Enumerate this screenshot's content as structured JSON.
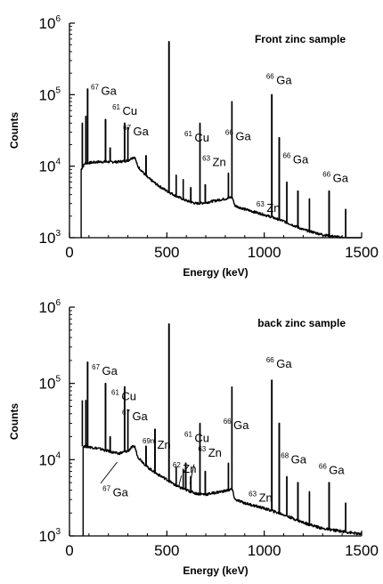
{
  "chart_data": [
    {
      "type": "line",
      "panel_label": "Front zinc sample",
      "xlabel": "Energy (keV)",
      "ylabel": "Counts",
      "xlim": [
        0,
        1500
      ],
      "ylim": [
        1000,
        1000000
      ],
      "log_y": true,
      "x_ticks": [
        "0",
        "500",
        "1000",
        "1500"
      ],
      "y_ticks": [
        {
          "base": "10",
          "exp": "3"
        },
        {
          "base": "10",
          "exp": "4"
        },
        {
          "base": "10",
          "exp": "5"
        },
        {
          "base": "10",
          "exp": "6"
        }
      ],
      "baseline": [
        [
          60,
          9000
        ],
        [
          80,
          11000
        ],
        [
          150,
          11500
        ],
        [
          250,
          11500
        ],
        [
          300,
          12000
        ],
        [
          320,
          13000
        ],
        [
          335,
          13500
        ],
        [
          350,
          10000
        ],
        [
          400,
          7000
        ],
        [
          450,
          5500
        ],
        [
          500,
          4500
        ],
        [
          550,
          3800
        ],
        [
          600,
          3300
        ],
        [
          650,
          3000
        ],
        [
          700,
          3100
        ],
        [
          750,
          3300
        ],
        [
          800,
          3500
        ],
        [
          835,
          3700
        ],
        [
          850,
          2800
        ],
        [
          900,
          2500
        ],
        [
          1000,
          2100
        ],
        [
          1100,
          1700
        ],
        [
          1200,
          1300
        ],
        [
          1300,
          1100
        ],
        [
          1400,
          1000
        ],
        [
          1500,
          880
        ]
      ],
      "peaks": [
        [
          66,
          40000
        ],
        [
          84,
          50000
        ],
        [
          93,
          120000
        ],
        [
          185,
          45000
        ],
        [
          209,
          18000
        ],
        [
          283,
          40000
        ],
        [
          300,
          35000
        ],
        [
          393,
          14000
        ],
        [
          511,
          550000
        ],
        [
          548,
          7500
        ],
        [
          584,
          6500
        ],
        [
          623,
          5000
        ],
        [
          670,
          40000
        ],
        [
          697,
          5500
        ],
        [
          816,
          8000
        ],
        [
          834,
          80000
        ],
        [
          1039,
          100000
        ],
        [
          1077,
          25000
        ],
        [
          1116,
          6000
        ],
        [
          1173,
          4500
        ],
        [
          1232,
          3500
        ],
        [
          1333,
          3500
        ],
        [
          1333,
          4500
        ],
        [
          1418,
          2500
        ]
      ],
      "annotations": [
        {
          "sup": "67",
          "el": "Ga",
          "x": 110,
          "y": 100000
        },
        {
          "sup": "61",
          "el": "Cu",
          "x": 220,
          "y": 52000
        },
        {
          "sup": "67",
          "el": "Ga",
          "x": 275,
          "y": 27000
        },
        {
          "sup": "61",
          "el": "Cu",
          "x": 590,
          "y": 22000
        },
        {
          "sup": "63",
          "el": "Zn",
          "x": 682,
          "y": 10000
        },
        {
          "sup": "66",
          "el": "Ga",
          "x": 800,
          "y": 23000
        },
        {
          "sup": "66",
          "el": "Ga",
          "x": 1010,
          "y": 140000
        },
        {
          "sup": "63",
          "el": "Zn",
          "x": 960,
          "y": 2300
        },
        {
          "sup": "66",
          "el": "Ga",
          "x": 1095,
          "y": 11000
        },
        {
          "sup": "66",
          "el": "Ga",
          "x": 1300,
          "y": 6000
        }
      ]
    },
    {
      "type": "line",
      "panel_label": "back zinc sample",
      "xlabel": "Energy (keV)",
      "ylabel": "Counts",
      "xlim": [
        0,
        1500
      ],
      "ylim": [
        1000,
        1000000
      ],
      "log_y": true,
      "x_ticks": [
        "0",
        "500",
        "1000",
        "1500"
      ],
      "y_ticks": [
        {
          "base": "10",
          "exp": "3"
        },
        {
          "base": "10",
          "exp": "4"
        },
        {
          "base": "10",
          "exp": "5"
        },
        {
          "base": "10",
          "exp": "6"
        }
      ],
      "baseline": [
        [
          70,
          15000
        ],
        [
          80,
          15000
        ],
        [
          150,
          14000
        ],
        [
          250,
          12000
        ],
        [
          300,
          13000
        ],
        [
          320,
          14500
        ],
        [
          335,
          15000
        ],
        [
          350,
          11000
        ],
        [
          400,
          8000
        ],
        [
          450,
          6500
        ],
        [
          500,
          5500
        ],
        [
          550,
          4500
        ],
        [
          600,
          4000
        ],
        [
          650,
          3600
        ],
        [
          700,
          3500
        ],
        [
          750,
          3700
        ],
        [
          800,
          3900
        ],
        [
          835,
          4100
        ],
        [
          850,
          3000
        ],
        [
          900,
          2700
        ],
        [
          1000,
          2300
        ],
        [
          1100,
          1900
        ],
        [
          1200,
          1500
        ],
        [
          1300,
          1250
        ],
        [
          1400,
          1150
        ],
        [
          1500,
          1050
        ]
      ],
      "peaks": [
        [
          66,
          60000
        ],
        [
          84,
          60000
        ],
        [
          93,
          190000
        ],
        [
          185,
          100000
        ],
        [
          209,
          20000
        ],
        [
          283,
          90000
        ],
        [
          300,
          45000
        ],
        [
          393,
          15000
        ],
        [
          439,
          25000
        ],
        [
          511,
          600000
        ],
        [
          548,
          8000
        ],
        [
          584,
          7500
        ],
        [
          597,
          9000
        ],
        [
          623,
          6000
        ],
        [
          670,
          30000
        ],
        [
          697,
          7000
        ],
        [
          816,
          9000
        ],
        [
          834,
          90000
        ],
        [
          1039,
          110000
        ],
        [
          1077,
          30000
        ],
        [
          1116,
          6000
        ],
        [
          1173,
          5000
        ],
        [
          1232,
          3800
        ],
        [
          1333,
          5000
        ],
        [
          1418,
          2700
        ]
      ],
      "annotations": [
        {
          "sup": "67",
          "el": "Ga",
          "x": 115,
          "y": 130000
        },
        {
          "sup": "61",
          "el": "Cu",
          "x": 215,
          "y": 60000
        },
        {
          "sup": "67",
          "el": "Ga",
          "x": 270,
          "y": 33000
        },
        {
          "sup": "69m",
          "el": "Zn",
          "x": 375,
          "y": 14000
        },
        {
          "sup": "61",
          "el": "Cu",
          "x": 590,
          "y": 17000
        },
        {
          "sup": "62",
          "el": "Zn",
          "x": 530,
          "y": 6700
        },
        {
          "sup": "63",
          "el": "Zn",
          "x": 660,
          "y": 11000
        },
        {
          "sup": "66",
          "el": "Ga",
          "x": 790,
          "y": 25000
        },
        {
          "sup": "66",
          "el": "Ga",
          "x": 1010,
          "y": 160000
        },
        {
          "sup": "63",
          "el": "Zn",
          "x": 920,
          "y": 2800
        },
        {
          "sup": "68",
          "el": "Ga",
          "x": 1085,
          "y": 9000
        },
        {
          "sup": "66",
          "el": "Ga",
          "x": 1280,
          "y": 6500
        },
        {
          "sup": "67",
          "el": "Ga",
          "x": 170,
          "y": 3300
        }
      ],
      "pointer_lines": [
        {
          "from": [
            160,
            4900
          ],
          "to": [
            245,
            9300
          ]
        },
        {
          "from": [
            562,
            4600
          ],
          "to": [
            575,
            6200
          ]
        },
        {
          "from": [
            618,
            4800
          ],
          "to": [
            640,
            8700
          ]
        }
      ]
    }
  ]
}
